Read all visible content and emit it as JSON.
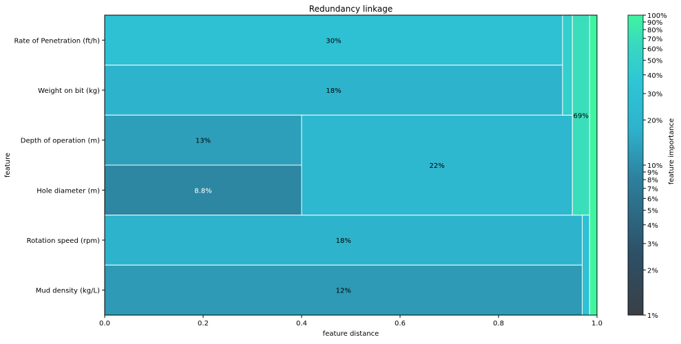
{
  "chart_data": {
    "type": "dendrogram-treemap",
    "title": "Redundancy linkage",
    "xlabel": "feature distance",
    "ylabel": "feature",
    "xlim": [
      0,
      1
    ],
    "x_ticks": [
      "0.0",
      "0.2",
      "0.4",
      "0.6",
      "0.8",
      "1.0"
    ],
    "x_tick_values": [
      0,
      0.2,
      0.4,
      0.6,
      0.8,
      1.0
    ],
    "features": [
      "Rate of Penetration (ft/h)",
      "Weight on bit (kg)",
      "Depth of operation (m)",
      "Hole diameter (m)",
      "Rotation speed (rpm)",
      "Mud density (kg/L)"
    ],
    "leaves": [
      {
        "feature": "Rate of Penetration (ft/h)",
        "distance": 0.93,
        "importance": 0.3,
        "label": "30%"
      },
      {
        "feature": "Weight on bit (kg)",
        "distance": 0.93,
        "importance": 0.18,
        "label": "18%"
      },
      {
        "feature": "Depth of operation (m)",
        "distance": 0.4,
        "importance": 0.13,
        "label": "13%"
      },
      {
        "feature": "Hole diameter (m)",
        "distance": 0.4,
        "importance": 0.088,
        "label": "8.8%"
      },
      {
        "feature": "Rotation speed (rpm)",
        "distance": 0.97,
        "importance": 0.18,
        "label": "18%"
      },
      {
        "feature": "Mud density (kg/L)",
        "distance": 0.97,
        "importance": 0.12,
        "label": "12%"
      }
    ],
    "clusters": [
      {
        "members": [
          "Depth of operation (m)",
          "Hole diameter (m)"
        ],
        "from": 0.4,
        "to": 0.95,
        "importance": 0.22,
        "label": "22%"
      },
      {
        "members": [
          "Rate of Penetration (ft/h)",
          "Weight on bit (kg)"
        ],
        "from": 0.93,
        "to": 0.95,
        "importance": 0.48,
        "label": ""
      },
      {
        "members": [
          "Rate of Penetration (ft/h)",
          "Weight on bit (kg)",
          "Depth of operation (m)",
          "Hole diameter (m)"
        ],
        "from": 0.95,
        "to": 0.985,
        "importance": 0.69,
        "label": "69%"
      },
      {
        "members": [
          "Rotation speed (rpm)",
          "Mud density (kg/L)"
        ],
        "from": 0.97,
        "to": 0.985,
        "importance": 0.3,
        "label": ""
      },
      {
        "members": [
          "Rate of Penetration (ft/h)",
          "Weight on bit (kg)",
          "Depth of operation (m)",
          "Hole diameter (m)",
          "Rotation speed (rpm)",
          "Mud density (kg/L)"
        ],
        "from": 0.985,
        "to": 1.0,
        "importance": 1.0,
        "label": ""
      }
    ],
    "colorbar": {
      "label": "feature importance",
      "scale": "log",
      "ticks": [
        {
          "value": 0.01,
          "label": "1%"
        },
        {
          "value": 0.02,
          "label": "2%"
        },
        {
          "value": 0.03,
          "label": "3%"
        },
        {
          "value": 0.04,
          "label": "4%"
        },
        {
          "value": 0.05,
          "label": "5%"
        },
        {
          "value": 0.06,
          "label": "6%"
        },
        {
          "value": 0.07,
          "label": "7%"
        },
        {
          "value": 0.08,
          "label": "8%"
        },
        {
          "value": 0.09,
          "label": "9%"
        },
        {
          "value": 0.1,
          "label": "10%"
        },
        {
          "value": 0.2,
          "label": "20%"
        },
        {
          "value": 0.3,
          "label": "30%"
        },
        {
          "value": 0.4,
          "label": "40%"
        },
        {
          "value": 0.5,
          "label": "50%"
        },
        {
          "value": 0.6,
          "label": "60%"
        },
        {
          "value": 0.7,
          "label": "70%"
        },
        {
          "value": 0.8,
          "label": "80%"
        },
        {
          "value": 0.9,
          "label": "90%"
        },
        {
          "value": 1.0,
          "label": "100%"
        }
      ],
      "colors": [
        "#3a3f45",
        "#2d5f80",
        "#2e9ab5",
        "#2ec6d6",
        "#38d6c0",
        "#40f5a0"
      ]
    }
  }
}
